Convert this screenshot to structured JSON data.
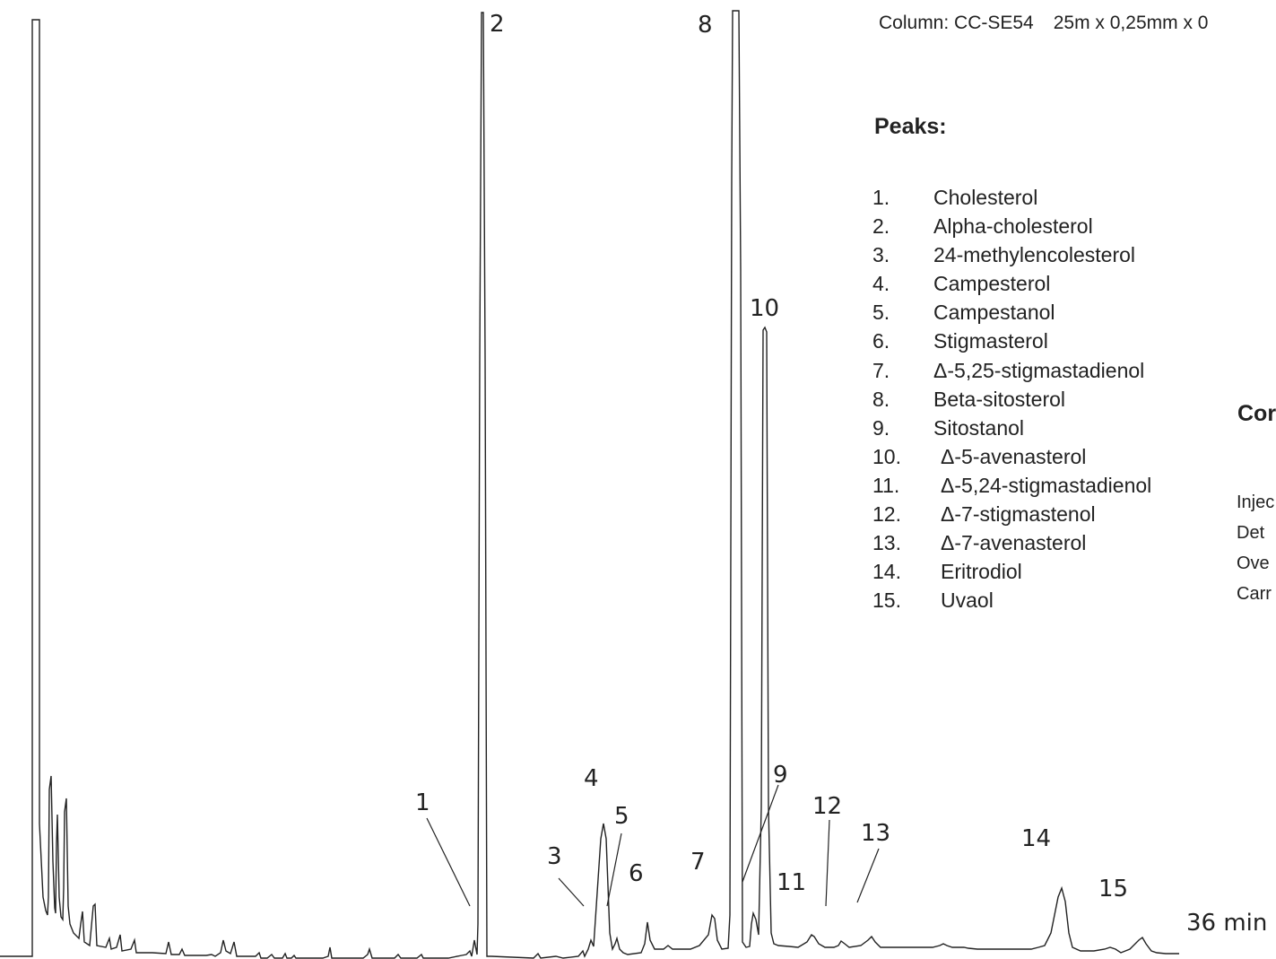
{
  "chart_data": {
    "type": "line",
    "title": "",
    "xlabel": "",
    "ylabel": "",
    "x_end_label": "36 min",
    "column": {
      "text": "Column: CC-SE54",
      "dimensions": "25m x 0,25mm x 0"
    },
    "peaks_heading": "Peaks:",
    "compounds": [
      {
        "number": "1.",
        "name": "Cholesterol"
      },
      {
        "number": "2.",
        "name": "Alpha-cholesterol"
      },
      {
        "number": "3.",
        "name": "24-methylencolesterol"
      },
      {
        "number": "4.",
        "name": "Campesterol"
      },
      {
        "number": "5.",
        "name": "Campestanol"
      },
      {
        "number": "6.",
        "name": "Stigmasterol"
      },
      {
        "number": "7.",
        "name": "Δ-5,25-stigmastadienol"
      },
      {
        "number": "8.",
        "name": "Beta-sitosterol"
      },
      {
        "number": "9.",
        "name": "Sitostanol"
      },
      {
        "number": "10.",
        "name": "Δ-5-avenasterol"
      },
      {
        "number": "11.",
        "name": "Δ-5,24-stigmastadienol"
      },
      {
        "number": "12.",
        "name": "Δ-7-stigmastenol"
      },
      {
        "number": "13.",
        "name": "Δ-7-avenasterol"
      },
      {
        "number": "14.",
        "name": "Eritrodiol"
      },
      {
        "number": "15.",
        "name": "Uvaol"
      }
    ],
    "conditions_heading": "Cor",
    "conditions": [
      "Injec",
      "Det",
      "Ove",
      "Carr"
    ],
    "peak_labels": [
      {
        "label": "1"
      },
      {
        "label": "2"
      },
      {
        "label": "3"
      },
      {
        "label": "4"
      },
      {
        "label": "5"
      },
      {
        "label": "6"
      },
      {
        "label": "7"
      },
      {
        "label": "8"
      },
      {
        "label": "9"
      },
      {
        "label": "10"
      },
      {
        "label": "11"
      },
      {
        "label": "12"
      },
      {
        "label": "13"
      },
      {
        "label": "14"
      },
      {
        "label": "15"
      }
    ]
  }
}
